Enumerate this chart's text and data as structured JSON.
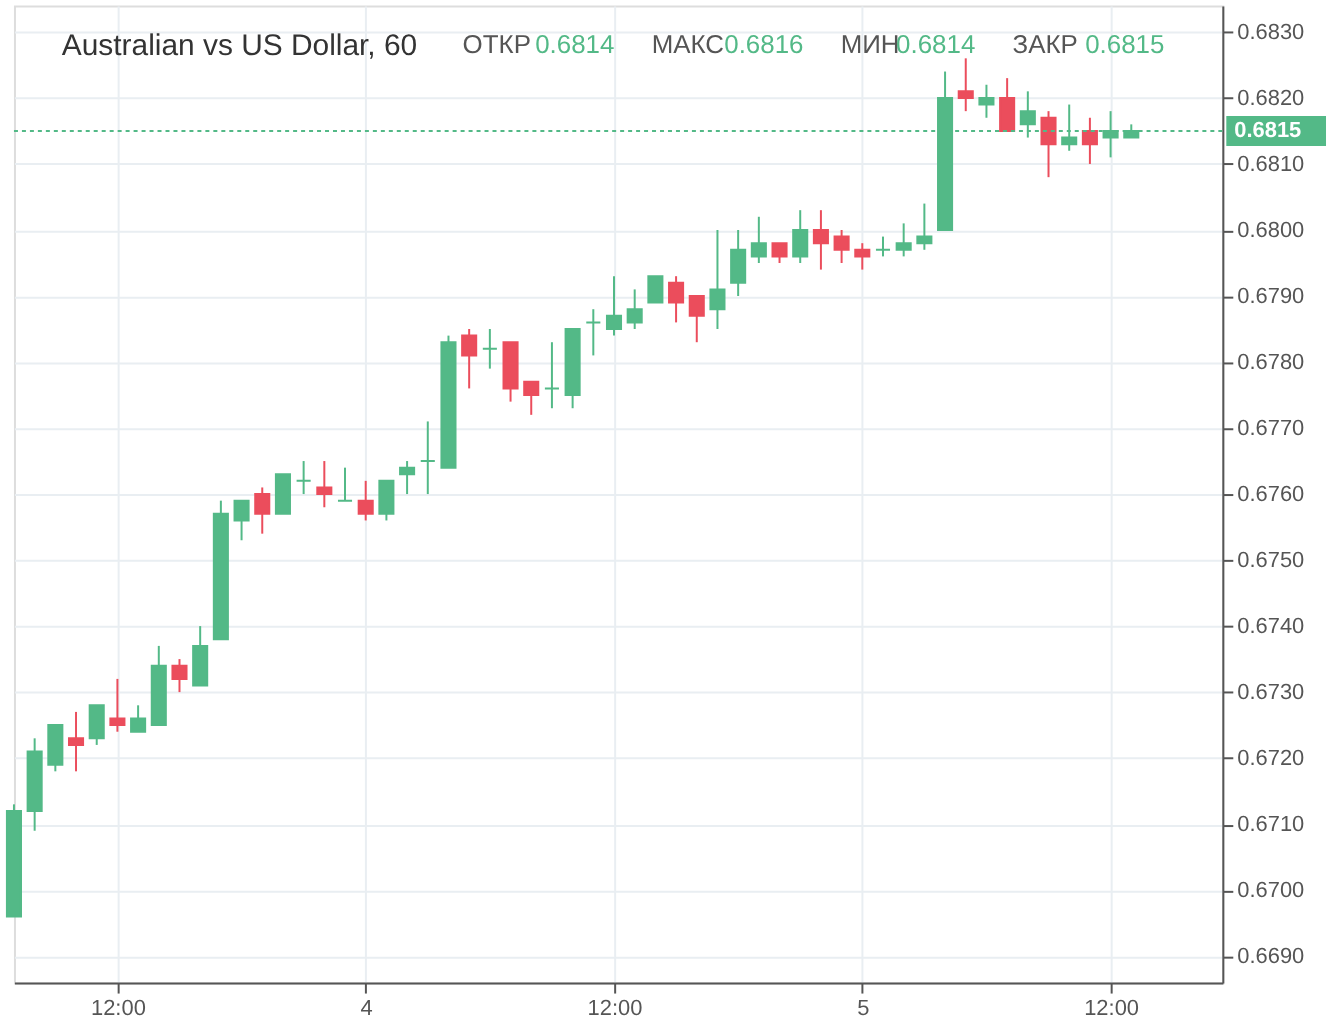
{
  "chart_data": {
    "type": "candlestick",
    "title": "Australian vs US Dollar, 60",
    "annotations": [
      "ОТКР",
      "0.6814",
      "МАКС",
      "0.6816",
      "МИН",
      "0.6814",
      "ЗАКР",
      "0.6815"
    ],
    "categories": [
      null,
      null,
      null,
      null,
      null,
      "12:00",
      null,
      null,
      null,
      null,
      null,
      null,
      null,
      null,
      null,
      null,
      null,
      "4",
      null,
      null,
      null,
      null,
      null,
      null,
      null,
      null,
      null,
      null,
      null,
      "12:00",
      null,
      null,
      null,
      null,
      null,
      null,
      null,
      null,
      null,
      null,
      null,
      "5",
      null,
      null,
      null,
      null,
      null,
      null,
      null,
      null,
      null,
      null,
      null,
      "12:00",
      null
    ],
    "ohlc": [
      [
        0.6696,
        0.6713,
        0.6696,
        0.6712
      ],
      [
        0.6712,
        0.6723,
        0.6709,
        0.6721
      ],
      [
        0.6719,
        0.6725,
        0.6718,
        0.6725
      ],
      [
        0.6723,
        0.6727,
        0.6718,
        0.6722
      ],
      [
        0.6723,
        0.6728,
        0.6722,
        0.6728
      ],
      [
        0.6726,
        0.6732,
        0.6724,
        0.6725
      ],
      [
        0.6724,
        0.6728,
        0.6724,
        0.6726
      ],
      [
        0.6725,
        0.6737,
        0.6725,
        0.6734
      ],
      [
        0.6734,
        0.6735,
        0.673,
        0.6732
      ],
      [
        0.6731,
        0.674,
        0.6731,
        0.6737
      ],
      [
        0.6738,
        0.6759,
        0.6738,
        0.6757
      ],
      [
        0.6756,
        0.6759,
        0.6753,
        0.6759
      ],
      [
        0.676,
        0.6761,
        0.6754,
        0.6757
      ],
      [
        0.6757,
        0.6763,
        0.6757,
        0.6763
      ],
      [
        0.6762,
        0.6765,
        0.676,
        0.6762
      ],
      [
        0.6761,
        0.6765,
        0.6758,
        0.676
      ],
      [
        0.6759,
        0.6764,
        0.6759,
        0.6759
      ],
      [
        0.6759,
        0.6762,
        0.6756,
        0.6757
      ],
      [
        0.6757,
        0.6762,
        0.6756,
        0.6762
      ],
      [
        0.6763,
        0.6765,
        0.676,
        0.6764
      ],
      [
        0.6765,
        0.6771,
        0.676,
        0.6765
      ],
      [
        0.6764,
        0.6784,
        0.6764,
        0.6783
      ],
      [
        0.6784,
        0.6785,
        0.6776,
        0.6781
      ],
      [
        0.6782,
        0.6785,
        0.6779,
        0.6782
      ],
      [
        0.6783,
        0.6783,
        0.6774,
        0.6776
      ],
      [
        0.6777,
        0.6777,
        0.6772,
        0.6775
      ],
      [
        0.6776,
        0.6783,
        0.6773,
        0.6776
      ],
      [
        0.6775,
        0.6785,
        0.6773,
        0.6785
      ],
      [
        0.6786,
        0.6788,
        0.6781,
        0.6786
      ],
      [
        0.6785,
        0.6793,
        0.6784,
        0.6787
      ],
      [
        0.6786,
        0.6791,
        0.6785,
        0.6788
      ],
      [
        0.6789,
        0.6793,
        0.6789,
        0.6793
      ],
      [
        0.6792,
        0.6793,
        0.6786,
        0.6789
      ],
      [
        0.679,
        0.679,
        0.6783,
        0.6787
      ],
      [
        0.6788,
        0.68,
        0.6785,
        0.6791
      ],
      [
        0.6792,
        0.68,
        0.679,
        0.6797
      ],
      [
        0.6796,
        0.6802,
        0.6795,
        0.6798
      ],
      [
        0.6798,
        0.6798,
        0.6795,
        0.6796
      ],
      [
        0.6796,
        0.6803,
        0.6795,
        0.68
      ],
      [
        0.68,
        0.6803,
        0.6794,
        0.6798
      ],
      [
        0.6799,
        0.68,
        0.6795,
        0.6797
      ],
      [
        0.6797,
        0.6798,
        0.6794,
        0.6796
      ],
      [
        0.6797,
        0.6799,
        0.6796,
        0.6797
      ],
      [
        0.6797,
        0.6801,
        0.6796,
        0.6798
      ],
      [
        0.6798,
        0.6804,
        0.6797,
        0.6799
      ],
      [
        0.68,
        0.6824,
        0.68,
        0.682
      ],
      [
        0.6821,
        0.6826,
        0.6818,
        0.682
      ],
      [
        0.6819,
        0.6822,
        0.6817,
        0.682
      ],
      [
        0.682,
        0.6823,
        0.6815,
        0.6815
      ],
      [
        0.6816,
        0.6821,
        0.6814,
        0.6818
      ],
      [
        0.6817,
        0.6818,
        0.6808,
        0.6813
      ],
      [
        0.6813,
        0.6819,
        0.6812,
        0.6814
      ],
      [
        0.6815,
        0.6817,
        0.681,
        0.6813
      ],
      [
        0.6814,
        0.6818,
        0.6811,
        0.6815
      ],
      [
        0.6814,
        0.6816,
        0.6814,
        0.6815
      ]
    ],
    "colors": [
      "#53b987",
      "#53b987",
      "#53b987",
      "#eb4d5c",
      "#53b987",
      "#eb4d5c",
      "#53b987",
      "#53b987",
      "#eb4d5c",
      "#53b987",
      "#53b987",
      "#53b987",
      "#eb4d5c",
      "#53b987",
      "#53b987",
      "#eb4d5c",
      "#53b987",
      "#eb4d5c",
      "#53b987",
      "#53b987",
      "#53b987",
      "#53b987",
      "#eb4d5c",
      "#53b987",
      "#eb4d5c",
      "#eb4d5c",
      "#53b987",
      "#53b987",
      "#53b987",
      "#53b987",
      "#53b987",
      "#53b987",
      "#eb4d5c",
      "#eb4d5c",
      "#53b987",
      "#53b987",
      "#53b987",
      "#eb4d5c",
      "#53b987",
      "#eb4d5c",
      "#eb4d5c",
      "#eb4d5c",
      "#53b987",
      "#53b987",
      "#53b987",
      "#53b987",
      "#eb4d5c",
      "#53b987",
      "#eb4d5c",
      "#53b987",
      "#eb4d5c",
      "#53b987",
      "#eb4d5c",
      "#53b987",
      "#53b987"
    ],
    "ylim": [
      0.6686,
      0.6834
    ],
    "yticks": [
      {
        "value": 0.669,
        "label": "0.6690"
      },
      {
        "value": 0.67,
        "label": "0.6700"
      },
      {
        "value": 0.671,
        "label": "0.6710"
      },
      {
        "value": 0.672,
        "label": "0.6720"
      },
      {
        "value": 0.673,
        "label": "0.6730"
      },
      {
        "value": 0.674,
        "label": "0.6740"
      },
      {
        "value": 0.675,
        "label": "0.6750"
      },
      {
        "value": 0.676,
        "label": "0.6760"
      },
      {
        "value": 0.677,
        "label": "0.6770"
      },
      {
        "value": 0.678,
        "label": "0.6780"
      },
      {
        "value": 0.679,
        "label": "0.6790"
      },
      {
        "value": 0.68,
        "label": "0.6800"
      },
      {
        "value": 0.681,
        "label": "0.6810"
      },
      {
        "value": 0.682,
        "label": "0.6820"
      },
      {
        "value": 0.683,
        "label": "0.6830"
      }
    ],
    "ref_lines": [
      {
        "axis": "y",
        "value": 0.6815,
        "label": "0.6815",
        "color": "#53b987",
        "line_style": "dotted"
      }
    ],
    "grid": true
  }
}
